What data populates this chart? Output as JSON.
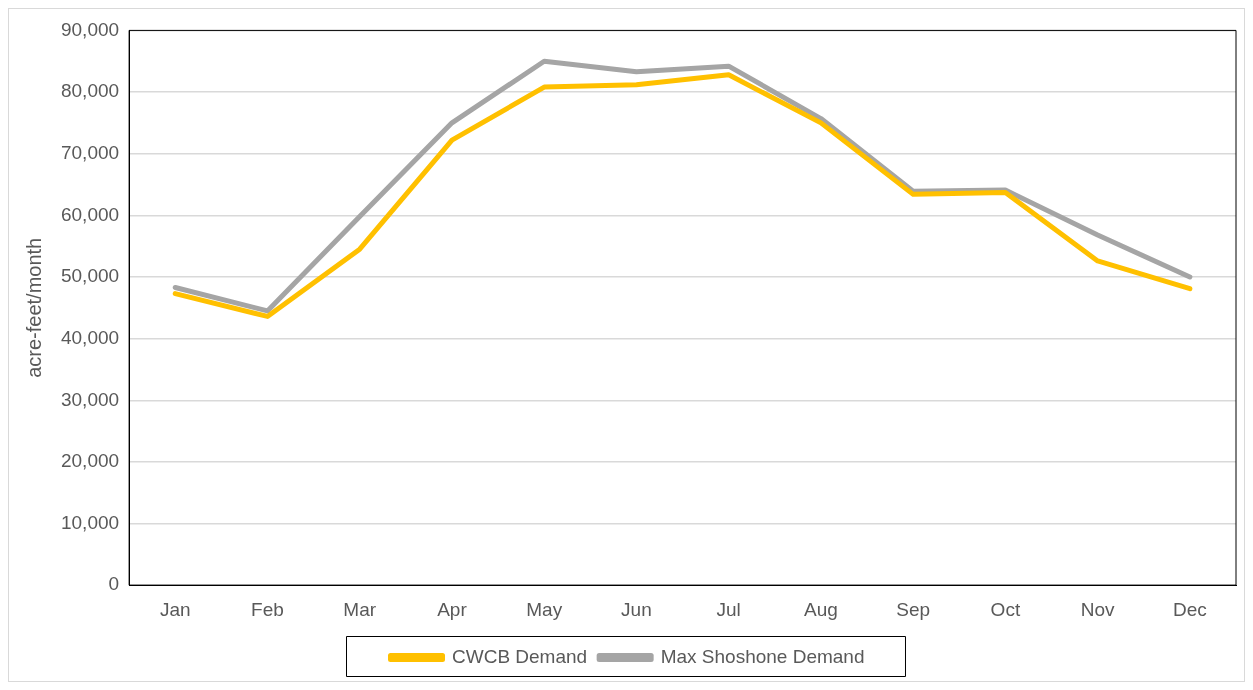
{
  "chart_data": {
    "type": "line",
    "ylabel": "acre-feet/month",
    "categories": [
      "Jan",
      "Feb",
      "Mar",
      "Apr",
      "May",
      "Jun",
      "Jul",
      "Aug",
      "Sep",
      "Oct",
      "Nov",
      "Dec"
    ],
    "series": [
      {
        "name": "CWCB Demand",
        "color": "#ffc000",
        "values": [
          47300,
          43600,
          54500,
          72200,
          80800,
          81200,
          82800,
          75000,
          63400,
          63700,
          52600,
          48100
        ]
      },
      {
        "name": "Max Shoshone Demand",
        "color": "#a5a5a5",
        "values": [
          48300,
          44500,
          59800,
          75000,
          85000,
          83300,
          84200,
          75700,
          63900,
          64100,
          56800,
          50000
        ]
      }
    ],
    "ylim": [
      0,
      90000
    ],
    "yticks": [
      0,
      {
        "value": 10000,
        "label": "10,000"
      },
      {
        "value": 20000,
        "label": "20,000"
      },
      {
        "value": 30000,
        "label": "30,000"
      },
      {
        "value": 40000,
        "label": "40,000"
      },
      {
        "value": 50000,
        "label": "50,000"
      },
      {
        "value": 60000,
        "label": "60,000"
      },
      {
        "value": 70000,
        "label": "70,000"
      },
      {
        "value": 80000,
        "label": "80,000"
      },
      {
        "value": 90000,
        "label": "90,000"
      }
    ],
    "grid": "y",
    "legend": "bottom",
    "marker": "none",
    "line_style": "solid"
  }
}
